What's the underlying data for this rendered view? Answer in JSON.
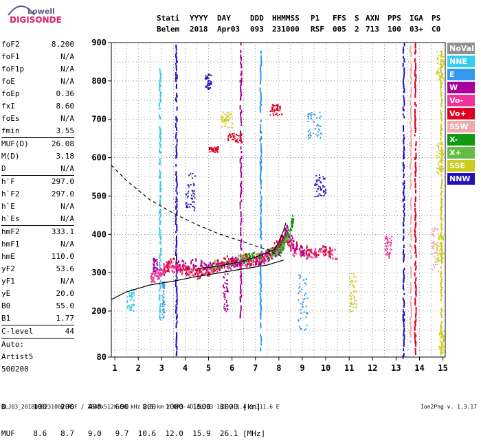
{
  "logo": {
    "line1": "Lowell",
    "line2": "DIGISONDE"
  },
  "header": {
    "labels": [
      "Stati",
      "YYYY",
      "DAY",
      "DDD",
      "HHMMSS",
      "P1",
      "FFS",
      "S",
      "AXN",
      "PPS",
      "IGA",
      "PS"
    ],
    "values": [
      "Belem",
      "2018",
      "Apr03",
      "093",
      "231000",
      "RSF",
      "005",
      "2",
      "713",
      "100",
      "03+",
      "C0"
    ]
  },
  "params": [
    {
      "label": "foF2",
      "value": "8.200"
    },
    {
      "label": "foF1",
      "value": "N/A"
    },
    {
      "label": "foF1p",
      "value": "N/A"
    },
    {
      "label": "foE",
      "value": "N/A"
    },
    {
      "label": "foEp",
      "value": "0.36"
    },
    {
      "label": "fxI",
      "value": "8.60"
    },
    {
      "label": "foEs",
      "value": "N/A"
    },
    {
      "label": "fmin",
      "value": "3.55",
      "sep": true
    },
    {
      "label": "MUF(D)",
      "value": "26.08"
    },
    {
      "label": "M(D)",
      "value": "3.18"
    },
    {
      "label": "D",
      "value": "N/A",
      "sep": true
    },
    {
      "label": "h`F",
      "value": "297.0"
    },
    {
      "label": "h`F2",
      "value": "297.0"
    },
    {
      "label": "h`E",
      "value": "N/A"
    },
    {
      "label": "h`Es",
      "value": "N/A",
      "sep": true
    },
    {
      "label": "hmF2",
      "value": "333.1"
    },
    {
      "label": "hmF1",
      "value": "N/A"
    },
    {
      "label": "hmE",
      "value": "110.0"
    },
    {
      "label": "yF2",
      "value": "53.6"
    },
    {
      "label": "yF1",
      "value": "N/A"
    },
    {
      "label": "yE",
      "value": "20.0"
    },
    {
      "label": "B0",
      "value": "55.0"
    },
    {
      "label": "B1",
      "value": "1.77",
      "sep": true
    },
    {
      "label": "C-level",
      "value": "44",
      "sep": true
    },
    {
      "label": "Auto:",
      "value": ""
    },
    {
      "label": "Artist5",
      "value": ""
    },
    {
      "label": "500200",
      "value": ""
    }
  ],
  "legend": [
    {
      "label": "NoVal",
      "color": "#909090"
    },
    {
      "label": "NNE",
      "color": "#33ccee"
    },
    {
      "label": "E",
      "color": "#3399ee"
    },
    {
      "label": "W",
      "color": "#aa0099"
    },
    {
      "label": "Vo-",
      "color": "#ee3399"
    },
    {
      "label": "Vo+",
      "color": "#dd0022"
    },
    {
      "label": "SSW",
      "color": "#eeaaaa"
    },
    {
      "label": "X-",
      "color": "#119911"
    },
    {
      "label": "X+",
      "color": "#66bb44"
    },
    {
      "label": "SSE",
      "color": "#cccc22"
    },
    {
      "label": "NNW",
      "color": "#2211bb"
    }
  ],
  "chart_data": {
    "type": "scatter",
    "xlim": [
      0.85,
      15.1
    ],
    "ylim": [
      80,
      900
    ],
    "x_ticks": [
      1,
      2,
      3,
      4,
      5,
      6,
      7,
      8,
      9,
      10,
      11,
      12,
      13,
      14,
      15
    ],
    "y_ticks": [
      80,
      200,
      300,
      400,
      500,
      600,
      700,
      800,
      900
    ],
    "y_tick_labels": [
      "80",
      "200",
      "300",
      "400",
      "500",
      "600",
      "700",
      "800",
      "900"
    ],
    "grid": true,
    "traces": [
      {
        "color": "#ee3399",
        "points": [
          [
            2.5,
            290
          ],
          [
            2.8,
            292
          ],
          [
            3.0,
            310
          ],
          [
            3.2,
            320
          ],
          [
            3.5,
            315
          ],
          [
            3.8,
            310
          ],
          [
            4.2,
            305
          ],
          [
            4.6,
            310
          ],
          [
            5.0,
            315
          ],
          [
            5.4,
            318
          ],
          [
            5.8,
            320
          ],
          [
            6.2,
            325
          ],
          [
            6.6,
            330
          ],
          [
            7.0,
            335
          ],
          [
            7.4,
            345
          ],
          [
            7.8,
            360
          ],
          [
            8.0,
            375
          ],
          [
            8.2,
            395
          ],
          [
            8.3,
            410
          ],
          [
            8.5,
            360
          ],
          [
            9.0,
            355
          ],
          [
            9.5,
            352
          ],
          [
            10.0,
            352
          ],
          [
            10.5,
            350
          ]
        ]
      },
      {
        "color": "#dd0022",
        "points": [
          [
            3.0,
            300
          ],
          [
            3.4,
            330
          ],
          [
            4.0,
            310
          ],
          [
            4.5,
            300
          ],
          [
            5.0,
            305
          ],
          [
            5.5,
            330
          ],
          [
            6.0,
            335
          ],
          [
            6.5,
            340
          ],
          [
            7.0,
            330
          ],
          [
            7.5,
            350
          ],
          [
            8.0,
            380
          ],
          [
            8.2,
            400
          ],
          [
            8.4,
            380
          ],
          [
            9.0,
            360
          ],
          [
            9.8,
            360
          ],
          [
            10.2,
            355
          ]
        ]
      },
      {
        "color": "#aa0099",
        "points": [
          [
            3.6,
            320
          ],
          [
            4.5,
            325
          ],
          [
            5.2,
            320
          ],
          [
            6.0,
            328
          ],
          [
            6.4,
            330
          ],
          [
            7.2,
            335
          ],
          [
            7.8,
            355
          ],
          [
            8.1,
            370
          ],
          [
            8.3,
            420
          ],
          [
            8.6,
            375
          ],
          [
            9.2,
            350
          ]
        ]
      },
      {
        "color": "#119911",
        "points": [
          [
            6.5,
            340
          ],
          [
            7.5,
            345
          ],
          [
            8.0,
            360
          ],
          [
            8.2,
            380
          ],
          [
            8.5,
            420
          ],
          [
            8.6,
            450
          ]
        ]
      },
      {
        "color": "#66bb44",
        "points": [
          [
            5.0,
            318
          ],
          [
            6.0,
            335
          ],
          [
            7.0,
            340
          ],
          [
            8.0,
            365
          ],
          [
            8.5,
            395
          ]
        ]
      }
    ],
    "curves": {
      "profile_solid": [
        [
          0.85,
          230
        ],
        [
          1.5,
          250
        ],
        [
          2.5,
          268
        ],
        [
          3.5,
          278
        ],
        [
          4.5,
          290
        ],
        [
          5.5,
          300
        ],
        [
          6.5,
          310
        ],
        [
          7.5,
          320
        ],
        [
          8.2,
          333
        ]
      ],
      "profile_dashed": [
        [
          0.85,
          580
        ],
        [
          1.5,
          540
        ],
        [
          2.5,
          490
        ],
        [
          3.5,
          455
        ],
        [
          4.5,
          425
        ],
        [
          5.5,
          400
        ],
        [
          6.5,
          380
        ],
        [
          7.5,
          360
        ],
        [
          8.2,
          340
        ]
      ],
      "trace_solid": [
        [
          4.5,
          310
        ],
        [
          5.5,
          318
        ],
        [
          6.5,
          330
        ],
        [
          7.2,
          345
        ],
        [
          7.8,
          360
        ],
        [
          8.0,
          380
        ],
        [
          8.2,
          410
        ],
        [
          8.3,
          430
        ]
      ]
    },
    "verticals": [
      {
        "color": "#3399ee",
        "x": 7.2,
        "y1": 100,
        "y2": 880
      },
      {
        "color": "#aa0099",
        "x": 6.35,
        "y1": 180,
        "y2": 900
      },
      {
        "color": "#2211bb",
        "x": 3.6,
        "y1": 80,
        "y2": 900
      },
      {
        "color": "#2211bb",
        "x": 13.3,
        "y1": 80,
        "y2": 900
      },
      {
        "color": "#eeaaaa",
        "x": 13.6,
        "y1": 120,
        "y2": 900
      },
      {
        "color": "#dd0022",
        "x": 13.8,
        "y1": 80,
        "y2": 900
      },
      {
        "color": "#33ccee",
        "x": 2.9,
        "y1": 180,
        "y2": 830
      },
      {
        "color": "#cccc22",
        "x": 14.9,
        "y1": 90,
        "y2": 880
      }
    ],
    "clusters": [
      {
        "color": "#dd0022",
        "x": [
          5.0,
          5.4
        ],
        "y": [
          615,
          630
        ]
      },
      {
        "color": "#dd0022",
        "x": [
          5.8,
          6.4
        ],
        "y": [
          640,
          665
        ]
      },
      {
        "color": "#dd0022",
        "x": [
          7.6,
          8.1
        ],
        "y": [
          710,
          740
        ]
      },
      {
        "color": "#cccc22",
        "x": [
          5.5,
          6.0
        ],
        "y": [
          680,
          720
        ]
      },
      {
        "color": "#2211bb",
        "x": [
          4.8,
          5.1
        ],
        "y": [
          780,
          820
        ]
      },
      {
        "color": "#3399ee",
        "x": [
          9.2,
          9.8
        ],
        "y": [
          650,
          720
        ]
      },
      {
        "color": "#aa0099",
        "x": [
          2.6,
          2.8
        ],
        "y": [
          300,
          340
        ]
      },
      {
        "color": "#3399ee",
        "x": [
          3.0,
          3.1
        ],
        "y": [
          180,
          280
        ]
      },
      {
        "color": "#cccc22",
        "x": [
          14.7,
          15.0
        ],
        "y": [
          330,
          400
        ]
      },
      {
        "color": "#cccc22",
        "x": [
          14.7,
          15.0
        ],
        "y": [
          800,
          880
        ]
      },
      {
        "color": "#cccc22",
        "x": [
          14.7,
          15.0
        ],
        "y": [
          560,
          640
        ]
      },
      {
        "color": "#cccc22",
        "x": [
          14.8,
          15.05
        ],
        "y": [
          90,
          150
        ]
      },
      {
        "color": "#eeaaaa",
        "x": [
          14.5,
          14.8
        ],
        "y": [
          300,
          420
        ]
      },
      {
        "color": "#ee3399",
        "x": [
          12.5,
          12.8
        ],
        "y": [
          340,
          400
        ]
      },
      {
        "color": "#cccc22",
        "x": [
          11.0,
          11.3
        ],
        "y": [
          200,
          300
        ]
      },
      {
        "color": "#33ccee",
        "x": [
          1.5,
          1.8
        ],
        "y": [
          200,
          260
        ]
      },
      {
        "color": "#3399ee",
        "x": [
          8.8,
          9.2
        ],
        "y": [
          150,
          300
        ]
      },
      {
        "color": "#2211bb",
        "x": [
          4.0,
          4.4
        ],
        "y": [
          460,
          560
        ]
      },
      {
        "color": "#aa0099",
        "x": [
          5.6,
          5.8
        ],
        "y": [
          200,
          300
        ]
      },
      {
        "color": "#2211bb",
        "x": [
          9.5,
          10.0
        ],
        "y": [
          500,
          560
        ]
      }
    ]
  },
  "bottom": {
    "row1_label": "D",
    "row1_values": [
      "100",
      "200",
      "400",
      "600",
      "800",
      "1000",
      "1500",
      "3000"
    ],
    "row1_unit": "[km]",
    "row2_label": "MUF",
    "row2_values": [
      "8.6",
      "8.7",
      "9.0",
      "9.7",
      "10.6",
      "12.0",
      "15.9",
      "26.1"
    ],
    "row2_unit": "[MHz]"
  },
  "footer": {
    "left": "BLJ03_2018093231000.RSF / 284fx512h 50 kHz 2.5 km / DPS-4D BLJ03 103 / 1.4 S 311.6 E",
    "right": "Ion2Png v. 1.3.17"
  }
}
